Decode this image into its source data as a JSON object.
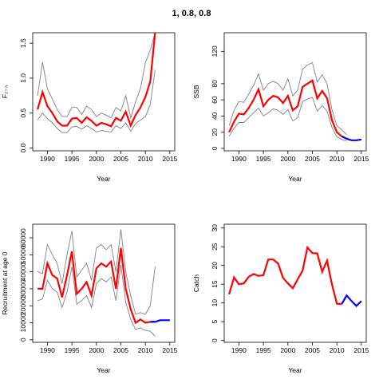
{
  "figure": {
    "title": "1, 0.8, 0.8"
  },
  "colors": {
    "estimate": "#ff0000",
    "ci": "#808080",
    "projection": "#0000ff"
  },
  "chart_data": [
    {
      "id": "F",
      "type": "line",
      "ylabel": "F₂₋₃",
      "xlabel": "Year",
      "xlim": [
        1987,
        2016
      ],
      "ylim": [
        -0.04,
        1.65
      ],
      "xticks": [
        1990,
        1995,
        2000,
        2005,
        2010,
        2015
      ],
      "yticks": [
        0.0,
        0.5,
        1.0,
        1.5
      ],
      "x": [
        1988,
        1989,
        1990,
        1991,
        1992,
        1993,
        1994,
        1995,
        1996,
        1997,
        1998,
        1999,
        2000,
        2001,
        2002,
        2003,
        2004,
        2005,
        2006,
        2007,
        2008,
        2009,
        2010,
        2011,
        2012
      ],
      "series": [
        {
          "role": "estimate",
          "values": [
            0.55,
            0.8,
            0.6,
            0.5,
            0.38,
            0.32,
            0.32,
            0.42,
            0.43,
            0.36,
            0.44,
            0.39,
            0.32,
            0.36,
            0.34,
            0.31,
            0.43,
            0.39,
            0.52,
            0.32,
            0.47,
            0.58,
            0.73,
            0.95,
            1.65
          ]
        },
        {
          "role": "upper",
          "values": [
            0.75,
            1.23,
            0.85,
            0.7,
            0.55,
            0.45,
            0.45,
            0.58,
            0.58,
            0.48,
            0.6,
            0.55,
            0.45,
            0.5,
            0.47,
            0.43,
            0.58,
            0.53,
            0.75,
            0.43,
            0.66,
            0.85,
            1.22,
            1.4,
            1.65
          ]
        },
        {
          "role": "lower",
          "values": [
            0.4,
            0.5,
            0.42,
            0.36,
            0.28,
            0.22,
            0.22,
            0.3,
            0.31,
            0.27,
            0.32,
            0.28,
            0.23,
            0.25,
            0.24,
            0.23,
            0.32,
            0.28,
            0.36,
            0.24,
            0.35,
            0.4,
            0.45,
            0.62,
            1.12
          ]
        }
      ]
    },
    {
      "id": "SSB",
      "type": "line",
      "ylabel": "SSB",
      "xlabel": "Year",
      "xlim": [
        1987,
        2016
      ],
      "ylim": [
        -3,
        143
      ],
      "xticks": [
        1990,
        1995,
        2000,
        2005,
        2010,
        2015
      ],
      "yticks": [
        0,
        20,
        40,
        60,
        80,
        120
      ],
      "x": [
        1988,
        1989,
        1990,
        1991,
        1992,
        1993,
        1994,
        1995,
        1996,
        1997,
        1998,
        1999,
        2000,
        2001,
        2002,
        2003,
        2004,
        2005,
        2006,
        2007,
        2008,
        2009,
        2010,
        2011,
        2012
      ],
      "series": [
        {
          "role": "estimate",
          "values": [
            20,
            33,
            43,
            42,
            50,
            60,
            73,
            52,
            60,
            65,
            63,
            56,
            65,
            47,
            52,
            76,
            80,
            84,
            62,
            71,
            62,
            35,
            20,
            15,
            12
          ]
        },
        {
          "role": "upper",
          "values": [
            28,
            47,
            58,
            57,
            67,
            78,
            92,
            72,
            80,
            83,
            80,
            72,
            86,
            65,
            72,
            98,
            103,
            106,
            82,
            91,
            80,
            48,
            28,
            23,
            17
          ]
        },
        {
          "role": "lower",
          "values": [
            15,
            25,
            32,
            32,
            38,
            44,
            50,
            40,
            44,
            49,
            47,
            42,
            48,
            34,
            38,
            58,
            61,
            63,
            46,
            53,
            46,
            26,
            14,
            11,
            9
          ]
        }
      ],
      "projection": {
        "x": [
          2011,
          2012,
          2013,
          2014,
          2015
        ],
        "values": [
          15,
          12,
          10,
          10,
          11
        ]
      }
    },
    {
      "id": "Recruitment",
      "type": "line",
      "ylabel": "Recruitment at age 0",
      "xlabel": "Year",
      "xlim": [
        1987,
        2016
      ],
      "ylim": [
        -1500,
        68000
      ],
      "xticks": [
        1990,
        1995,
        2000,
        2005,
        2010,
        2015
      ],
      "yticks": [
        0,
        10000,
        20000,
        30000,
        40000,
        50000,
        60000
      ],
      "x": [
        1988,
        1989,
        1990,
        1991,
        1992,
        1993,
        1994,
        1995,
        1996,
        1997,
        1998,
        1999,
        2000,
        2001,
        2002,
        2003,
        2004,
        2005,
        2006,
        2007,
        2008,
        2009,
        2010,
        2011,
        2012
      ],
      "series": [
        {
          "role": "estimate",
          "values": [
            30000,
            30000,
            45000,
            38000,
            36000,
            25000,
            38000,
            52000,
            27000,
            30000,
            34000,
            26000,
            42000,
            45000,
            43000,
            46000,
            30000,
            54000,
            30000,
            18000,
            10000,
            12000,
            10000,
            10500,
            10500
          ]
        },
        {
          "role": "upper",
          "values": [
            40000,
            39000,
            56000,
            50000,
            45000,
            33000,
            50000,
            64000,
            37000,
            41000,
            45000,
            35000,
            54000,
            56000,
            53000,
            56000,
            40000,
            65000,
            40000,
            26000,
            15000,
            16000,
            15000,
            20000,
            43000
          ]
        },
        {
          "role": "lower",
          "values": [
            23000,
            24000,
            35000,
            30000,
            28000,
            19000,
            28000,
            43000,
            21000,
            23000,
            26000,
            19000,
            33000,
            36000,
            34000,
            37000,
            23000,
            44000,
            22000,
            12000,
            6000,
            7000,
            5500,
            5000,
            2000
          ]
        }
      ],
      "projection": {
        "x": [
          2011,
          2012,
          2013,
          2014,
          2015
        ],
        "values": [
          10500,
          10500,
          11500,
          11500,
          11500
        ]
      }
    },
    {
      "id": "Catch",
      "type": "line",
      "ylabel": "Catch",
      "xlabel": "Year",
      "xlim": [
        1987,
        2016
      ],
      "ylim": [
        -0.5,
        31
      ],
      "xticks": [
        1990,
        1995,
        2000,
        2005,
        2010,
        2015
      ],
      "yticks": [
        0,
        5,
        10,
        15,
        20,
        25,
        30
      ],
      "x": [
        1988,
        1989,
        1990,
        1991,
        1992,
        1993,
        1994,
        1995,
        1996,
        1997,
        1998,
        1999,
        2000,
        2001,
        2002,
        2003,
        2004,
        2005,
        2006,
        2007,
        2008,
        2009,
        2010,
        2011
      ],
      "series": [
        {
          "role": "estimate",
          "values": [
            12.3,
            16.8,
            15.0,
            15.2,
            17.0,
            17.7,
            17.2,
            17.4,
            21.6,
            21.6,
            20.5,
            16.7,
            15.2,
            13.9,
            16.3,
            18.6,
            24.8,
            23.3,
            23.2,
            18.3,
            21.3,
            15.0,
            9.8,
            9.7
          ]
        }
      ],
      "projection": {
        "x": [
          2011,
          2012,
          2013,
          2014,
          2015
        ],
        "values": [
          9.7,
          12.0,
          10.5,
          9.2,
          10.5
        ]
      }
    }
  ]
}
